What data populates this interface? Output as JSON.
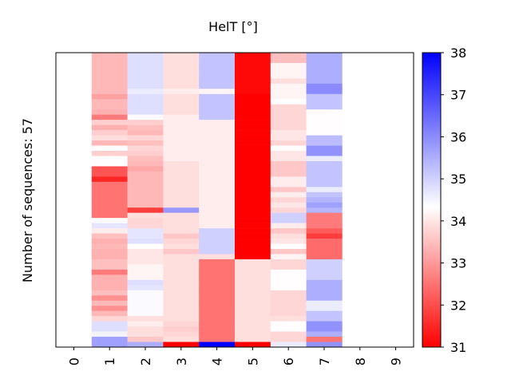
{
  "chart_data": {
    "type": "heatmap",
    "title": "HelT [°]",
    "xlabel": "",
    "ylabel": "Number of sequences: 57",
    "columns": [
      "0",
      "1",
      "2",
      "3",
      "4",
      "5",
      "6",
      "7",
      "8",
      "9"
    ],
    "n_rows": 57,
    "colorbar": {
      "min": 31,
      "max": 38,
      "center": 34.33,
      "ticks": [
        31,
        32,
        33,
        34,
        35,
        36,
        37,
        38
      ],
      "colors": {
        "low": "#ff0000",
        "mid": "#ffffff",
        "high": "#0000ff"
      }
    },
    "missing_columns": [
      "0",
      "9"
    ],
    "values": {
      "1": [
        33.4,
        33.4,
        33.4,
        33.4,
        33.4,
        33.4,
        33.4,
        33.4,
        33.1,
        33.4,
        33.4,
        33.3,
        32.6,
        33.7,
        33.3,
        33.7,
        33.9,
        33.4,
        34.3,
        33.7,
        34.3,
        34.3,
        32.1,
        32.1,
        31.5,
        32.5,
        32.5,
        32.5,
        32.5,
        32.5,
        32.5,
        32.5,
        34.3,
        34.7,
        34.1,
        33.5,
        33.3,
        33.4,
        33.3,
        33.3,
        33.5,
        33.5,
        32.6,
        33.3,
        33.3,
        33.3,
        33.5,
        32.9,
        33.4,
        32.9,
        33.4,
        33.8,
        34.8,
        34.8,
        34.5,
        35.7,
        35.7
      ],
      "2": [
        34.8,
        34.8,
        34.8,
        34.8,
        34.8,
        34.8,
        34.8,
        34.6,
        34.8,
        34.8,
        34.8,
        34.8,
        34.4,
        33.7,
        33.5,
        33.4,
        33.8,
        33.5,
        33.8,
        33.7,
        33.5,
        33.4,
        33.2,
        33.4,
        33.4,
        33.4,
        33.4,
        33.4,
        33.4,
        33.4,
        31.8,
        33.9,
        33.8,
        33.8,
        34.7,
        34.7,
        34.8,
        34.3,
        34.0,
        34.0,
        34.0,
        34.2,
        34.2,
        34.2,
        34.8,
        34.7,
        34.4,
        34.4,
        34.4,
        34.4,
        34.4,
        33.9,
        34.1,
        33.9,
        33.9,
        33.6,
        35.5
      ],
      "3": [
        33.9,
        33.9,
        33.9,
        33.9,
        33.9,
        33.9,
        33.9,
        34.1,
        33.9,
        33.9,
        33.9,
        33.9,
        34.1,
        34.1,
        34.1,
        34.1,
        34.1,
        34.1,
        34.1,
        34.1,
        34.1,
        33.9,
        33.9,
        33.9,
        33.9,
        33.9,
        33.9,
        33.9,
        33.9,
        33.9,
        35.8,
        33.9,
        33.9,
        33.9,
        33.9,
        33.6,
        33.8,
        33.9,
        33.6,
        33.9,
        33.9,
        33.9,
        33.9,
        33.9,
        33.9,
        33.9,
        33.9,
        33.9,
        33.9,
        33.9,
        33.9,
        33.9,
        33.8,
        33.7,
        33.8,
        33.9,
        31.0
      ],
      "4": [
        35.2,
        35.2,
        35.2,
        35.2,
        35.2,
        35.2,
        35.2,
        34.2,
        35.2,
        35.2,
        35.2,
        35.2,
        35.2,
        34.1,
        34.1,
        34.1,
        34.1,
        34.1,
        34.1,
        34.1,
        34.1,
        34.1,
        34.1,
        34.1,
        34.1,
        34.1,
        34.1,
        34.1,
        34.1,
        34.1,
        34.1,
        34.1,
        34.1,
        34.1,
        35.0,
        35.0,
        35.0,
        35.0,
        35.0,
        33.9,
        32.5,
        32.5,
        32.5,
        32.5,
        32.5,
        32.5,
        32.5,
        32.5,
        32.5,
        32.5,
        32.5,
        32.5,
        32.5,
        32.5,
        32.5,
        32.5,
        38.0
      ],
      "5": [
        31.1,
        31.1,
        31.1,
        31.1,
        31.1,
        31.1,
        31.1,
        31.1,
        31.0,
        31.0,
        31.0,
        31.0,
        31.0,
        31.0,
        31.0,
        31.0,
        31.0,
        31.0,
        31.0,
        31.0,
        31.0,
        31.0,
        31.0,
        31.0,
        31.0,
        31.0,
        31.0,
        31.0,
        31.0,
        31.0,
        31.0,
        31.0,
        31.0,
        31.0,
        31.0,
        31.0,
        31.0,
        31.0,
        31.0,
        31.0,
        33.9,
        33.9,
        33.9,
        33.9,
        33.9,
        33.9,
        33.9,
        33.9,
        33.9,
        33.9,
        33.9,
        33.9,
        33.9,
        33.9,
        33.9,
        33.9,
        31.0
      ],
      "6": [
        33.5,
        33.5,
        34.2,
        34.2,
        34.2,
        33.9,
        34.2,
        34.2,
        34.2,
        34.3,
        33.8,
        33.8,
        33.8,
        33.8,
        33.8,
        34.0,
        34.0,
        33.8,
        34.3,
        34.0,
        34.0,
        33.6,
        33.6,
        33.6,
        34.1,
        34.1,
        33.6,
        34.1,
        33.8,
        34.0,
        33.8,
        35.0,
        35.0,
        34.1,
        33.6,
        33.9,
        34.0,
        34.3,
        33.6,
        34.2,
        33.8,
        33.8,
        34.3,
        34.3,
        34.3,
        34.3,
        33.8,
        33.8,
        33.8,
        33.8,
        33.8,
        33.9,
        34.3,
        34.3,
        33.8,
        33.8,
        34.6
      ],
      "7": [
        35.5,
        35.5,
        35.5,
        35.5,
        35.5,
        35.5,
        36.0,
        36.0,
        35.2,
        35.2,
        35.2,
        34.3,
        34.3,
        34.3,
        34.3,
        34.3,
        35.3,
        35.3,
        35.9,
        35.9,
        34.6,
        35.2,
        35.2,
        35.2,
        35.2,
        35.2,
        34.6,
        35.2,
        35.4,
        35.7,
        35.4,
        32.6,
        32.6,
        32.6,
        32.2,
        31.8,
        32.4,
        32.4,
        32.4,
        32.4,
        35.0,
        35.0,
        35.0,
        35.0,
        35.5,
        35.5,
        35.5,
        35.5,
        34.6,
        34.6,
        35.2,
        35.2,
        35.9,
        35.9,
        35.5,
        32.5,
        35.9
      ]
    }
  }
}
